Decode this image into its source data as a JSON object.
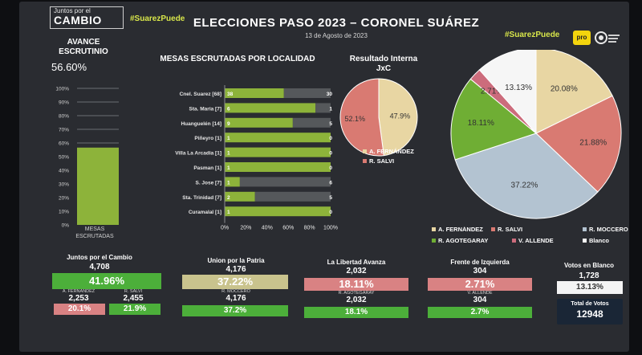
{
  "header": {
    "brand_top": "Juntos por el",
    "brand_main": "CAMBIO",
    "hashtag_left": "#SuarezPuede",
    "hashtag_right": "#SuarezPuede",
    "title": "ELECCIONES PASO 2023 – CORONEL SUÁREZ",
    "date": "13 de Agosto de 2023",
    "logo_pro": "pro"
  },
  "avance": {
    "title": "AVANCE ESCRUTINIO",
    "value": "56.60%",
    "mesas_label": "MESAS ESCRUTADAS"
  },
  "mesas_title": "MESAS ESCRUTADAS POR LOCALIDAD",
  "interna_title": "Resultado Interna JxC",
  "summary": {
    "jxc": {
      "party": "Juntos por el Cambio",
      "votes": "4,708",
      "pct": "41.96%",
      "cand1_name": "A. FERNANDEZ",
      "cand1_votes": "2,253",
      "cand1_pct": "20.1%",
      "cand2_name": "R. SALVI",
      "cand2_votes": "2,455",
      "cand2_pct": "21.9%"
    },
    "up": {
      "party": "Union por la Patria",
      "votes": "4,176",
      "pct": "37.22%",
      "cand_name": "R. MOCCERO",
      "cand_votes": "4,176",
      "cand_pct": "37.2%"
    },
    "lla": {
      "party": "La Libertad Avanza",
      "votes": "2,032",
      "pct": "18.11%",
      "cand_name": "R. AGOTEGARAY",
      "cand_votes": "2,032",
      "cand_pct": "18.1%"
    },
    "fit": {
      "party": "Frente de Izquierda",
      "votes": "304",
      "pct": "2.71%",
      "cand_name": "V. ALLENDE",
      "cand_votes": "304",
      "cand_pct": "2.7%"
    },
    "blanco": {
      "label": "Votos en Blanco",
      "votes": "1,728",
      "pct": "13.13%"
    },
    "total": {
      "label": "Total de Votos",
      "value": "12948"
    }
  },
  "colors": {
    "green": "#8db33a",
    "dark_gray": "#55585b",
    "tan": "#e8d6a3",
    "salmon": "#d97a72",
    "slate": "#b3c3d1",
    "lime": "#6fae34",
    "pink": "#cc6c7c",
    "white": "#f6f6f6"
  },
  "chart_data": [
    {
      "type": "bar",
      "title": "AVANCE ESCRUTINIO",
      "categories": [
        "MESAS ESCRUTADAS"
      ],
      "values": [
        56.6
      ],
      "ylim": [
        0,
        100
      ],
      "yticks": [
        "0%",
        "10%",
        "20%",
        "30%",
        "40%",
        "50%",
        "60%",
        "70%",
        "80%",
        "90%",
        "100%"
      ]
    },
    {
      "type": "bar",
      "orientation": "horizontal",
      "stacked": true,
      "title": "MESAS ESCRUTADAS POR LOCALIDAD",
      "categories": [
        "Cnel. Suarez [68]",
        "Sta. Maria [7]",
        "Huanguelén [14]",
        "Piñeyro [1]",
        "Villa La Arcadia [1]",
        "Pasman [1]",
        "S. Jose [7]",
        "Sta. Trinidad [7]",
        "Curamalal [1]"
      ],
      "series": [
        {
          "values": [
            38,
            6,
            9,
            1,
            1,
            1,
            1,
            2,
            1
          ]
        },
        {
          "values": [
            30,
            1,
            5,
            0,
            0,
            0,
            6,
            5,
            0
          ]
        }
      ],
      "xticks": [
        "0%",
        "20%",
        "40%",
        "60%",
        "80%",
        "100%"
      ]
    },
    {
      "type": "pie",
      "title": "Resultado Interna JxC",
      "labels": [
        "A. FERNÁNDEZ",
        "R. SALVI"
      ],
      "values": [
        47.9,
        52.1
      ],
      "value_labels": [
        "47.9%",
        "52.1%"
      ]
    },
    {
      "type": "pie",
      "labels": [
        "A. FERNÁNDEZ",
        "R. SALVI",
        "R. MOCCERO",
        "R. AGOTEGARAY",
        "V. ALLENDE",
        "Blanco"
      ],
      "values": [
        20.08,
        21.88,
        37.22,
        18.11,
        2.71,
        13.13
      ],
      "value_labels": [
        "20.08%",
        "21.88%",
        "37.22%",
        "18.11%",
        "2.71%",
        "13.13%"
      ]
    }
  ]
}
